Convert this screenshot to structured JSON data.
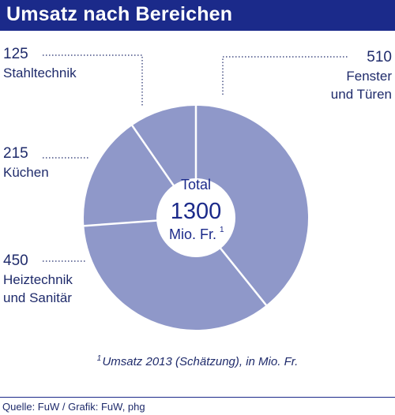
{
  "header": {
    "title": "Umsatz nach Bereichen"
  },
  "chart_data": {
    "type": "pie",
    "title": "Umsatz nach Bereichen",
    "unit": "Mio. Fr.",
    "center": {
      "line1": "Total",
      "value": "1300",
      "line3": "Mio. Fr.",
      "footnote_mark": "1"
    },
    "slices": [
      {
        "value": 510,
        "value_label": "510",
        "label_lines": [
          "Fenster",
          "und Türen"
        ]
      },
      {
        "value": 450,
        "value_label": "450",
        "label_lines": [
          "Heiztechnik",
          "und Sanitär"
        ]
      },
      {
        "value": 215,
        "value_label": "215",
        "label_lines": [
          "Küchen"
        ]
      },
      {
        "value": 125,
        "value_label": "125",
        "label_lines": [
          "Stahltechnik"
        ]
      }
    ],
    "colors": {
      "slice": "#8f98c9",
      "divider": "#ffffff",
      "text": "#1f2b6b",
      "leader": "#1f2b6b"
    }
  },
  "footnote": {
    "mark": "1",
    "text": "Umsatz 2013 (Schätzung), in Mio. Fr."
  },
  "source": "Quelle: FuW / Grafik: FuW, phg"
}
